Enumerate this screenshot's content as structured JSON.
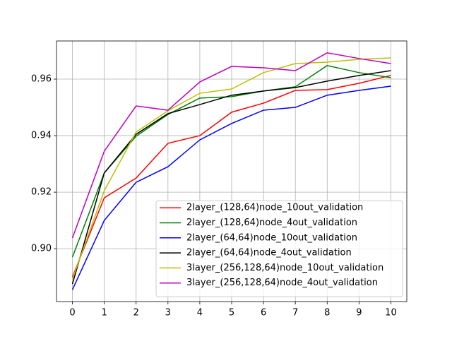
{
  "chart_data": {
    "type": "line",
    "x": [
      0,
      1,
      2,
      3,
      4,
      5,
      6,
      7,
      8,
      9,
      10
    ],
    "xlim": [
      -0.5,
      10.5
    ],
    "xticks": [
      0,
      1,
      2,
      3,
      4,
      5,
      6,
      7,
      8,
      9,
      10
    ],
    "ylim": [
      0.8813,
      0.9735
    ],
    "yticks": [
      {
        "value": 0.9,
        "label": "0.90"
      },
      0.92,
      0.94,
      0.96
    ],
    "grid": true,
    "legend": "lower right",
    "series": [
      {
        "name": "2layer_(128,64)node_10out_validation",
        "color": "#ff0000",
        "values": [
          0.89,
          0.918,
          0.925,
          0.9373,
          0.94,
          0.9483,
          0.9515,
          0.956,
          0.9563,
          0.9585,
          0.9613
        ]
      },
      {
        "name": "2layer_(128,64)node_4out_validation",
        "color": "#008000",
        "values": [
          0.897,
          0.9268,
          0.9398,
          0.9475,
          0.9533,
          0.9538,
          0.9558,
          0.9573,
          0.9648,
          0.9623,
          0.9605
        ]
      },
      {
        "name": "2layer_(64,64)node_10out_validation",
        "color": "#0000ff",
        "values": [
          0.8855,
          0.91,
          0.9235,
          0.929,
          0.9385,
          0.9443,
          0.949,
          0.95,
          0.9543,
          0.956,
          0.9575
        ]
      },
      {
        "name": "2layer_(64,64)node_4out_validation",
        "color": "#000000",
        "values": [
          0.8875,
          0.9268,
          0.9405,
          0.9478,
          0.951,
          0.9543,
          0.9558,
          0.957,
          0.9593,
          0.9613,
          0.963
        ]
      },
      {
        "name": "3layer_(256,128,64)node_10out_validation",
        "color": "#bfbf00",
        "values": [
          0.8893,
          0.9205,
          0.9413,
          0.9488,
          0.955,
          0.9565,
          0.9623,
          0.9655,
          0.966,
          0.967,
          0.9675
        ]
      },
      {
        "name": "3layer_(256,128,64)node_4out_validation",
        "color": "#bf00bf",
        "values": [
          0.9038,
          0.9345,
          0.9505,
          0.949,
          0.959,
          0.9645,
          0.964,
          0.963,
          0.9693,
          0.9673,
          0.9655
        ]
      }
    ]
  }
}
